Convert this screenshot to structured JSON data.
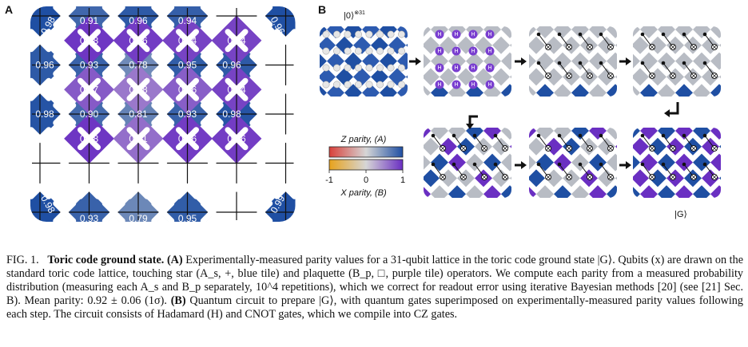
{
  "panel_a": {
    "label": "A",
    "plaquettes": [
      [
        0.98,
        0.96,
        0.94,
        0.94
      ],
      [
        0.87,
        0.78,
        0.86,
        0.94
      ],
      [
        0.98,
        0.81,
        0.96,
        0.96
      ]
    ],
    "stars": [
      [
        0.96,
        0.93,
        0.78,
        0.95,
        0.96
      ],
      [
        0.98,
        0.9,
        0.81,
        0.93,
        0.98
      ]
    ],
    "top_edge": [
      0.91,
      0.96,
      0.94
    ],
    "bottom_edge": [
      0.93,
      0.79,
      0.95
    ],
    "corners": {
      "top_left": "0.98",
      "top_right": "0.96",
      "bottom_left": "0.98",
      "bottom_right": "0.99"
    }
  },
  "panel_b": {
    "label": "B",
    "initial_state": "|0⟩",
    "initial_state_power": "⊗31",
    "hadamard_symbol": "H",
    "final_state": "|G⟩",
    "colorbar": {
      "z_label": "Z parity, (A)",
      "x_label": "X parity, (B)",
      "ticks": [
        "-1",
        "0",
        "1"
      ]
    }
  },
  "colors": {
    "star_blue": "#1f4fa3",
    "plaquette_purple": "#6a2fc2",
    "qubit_mark": "#ffffff",
    "neutral_gray": "#b8bcc4"
  },
  "caption": {
    "fig_label": "FIG. 1.",
    "title": "Toric code ground state.",
    "a_label": "(A)",
    "a_text": "Experimentally-measured parity values for a 31-qubit lattice in the toric code ground state |G⟩. Qubits (x) are drawn on the standard toric code lattice, touching star (A_s, +, blue tile) and plaquette (B_p, □, purple tile) operators. We compute each parity from a measured probability distribution (measuring each A_s and B_p separately, 10^4 repetitions), which we correct for readout error using iterative Bayesian methods [20] (see [21] Sec. B). Mean parity: 0.92 ± 0.06 (1σ).",
    "b_label": "(B)",
    "b_text": "Quantum circuit to prepare |G⟩, with quantum gates superimposed on experimentally-measured parity values following each step. The circuit consists of Hadamard (H) and CNOT gates, which we compile into CZ gates."
  }
}
